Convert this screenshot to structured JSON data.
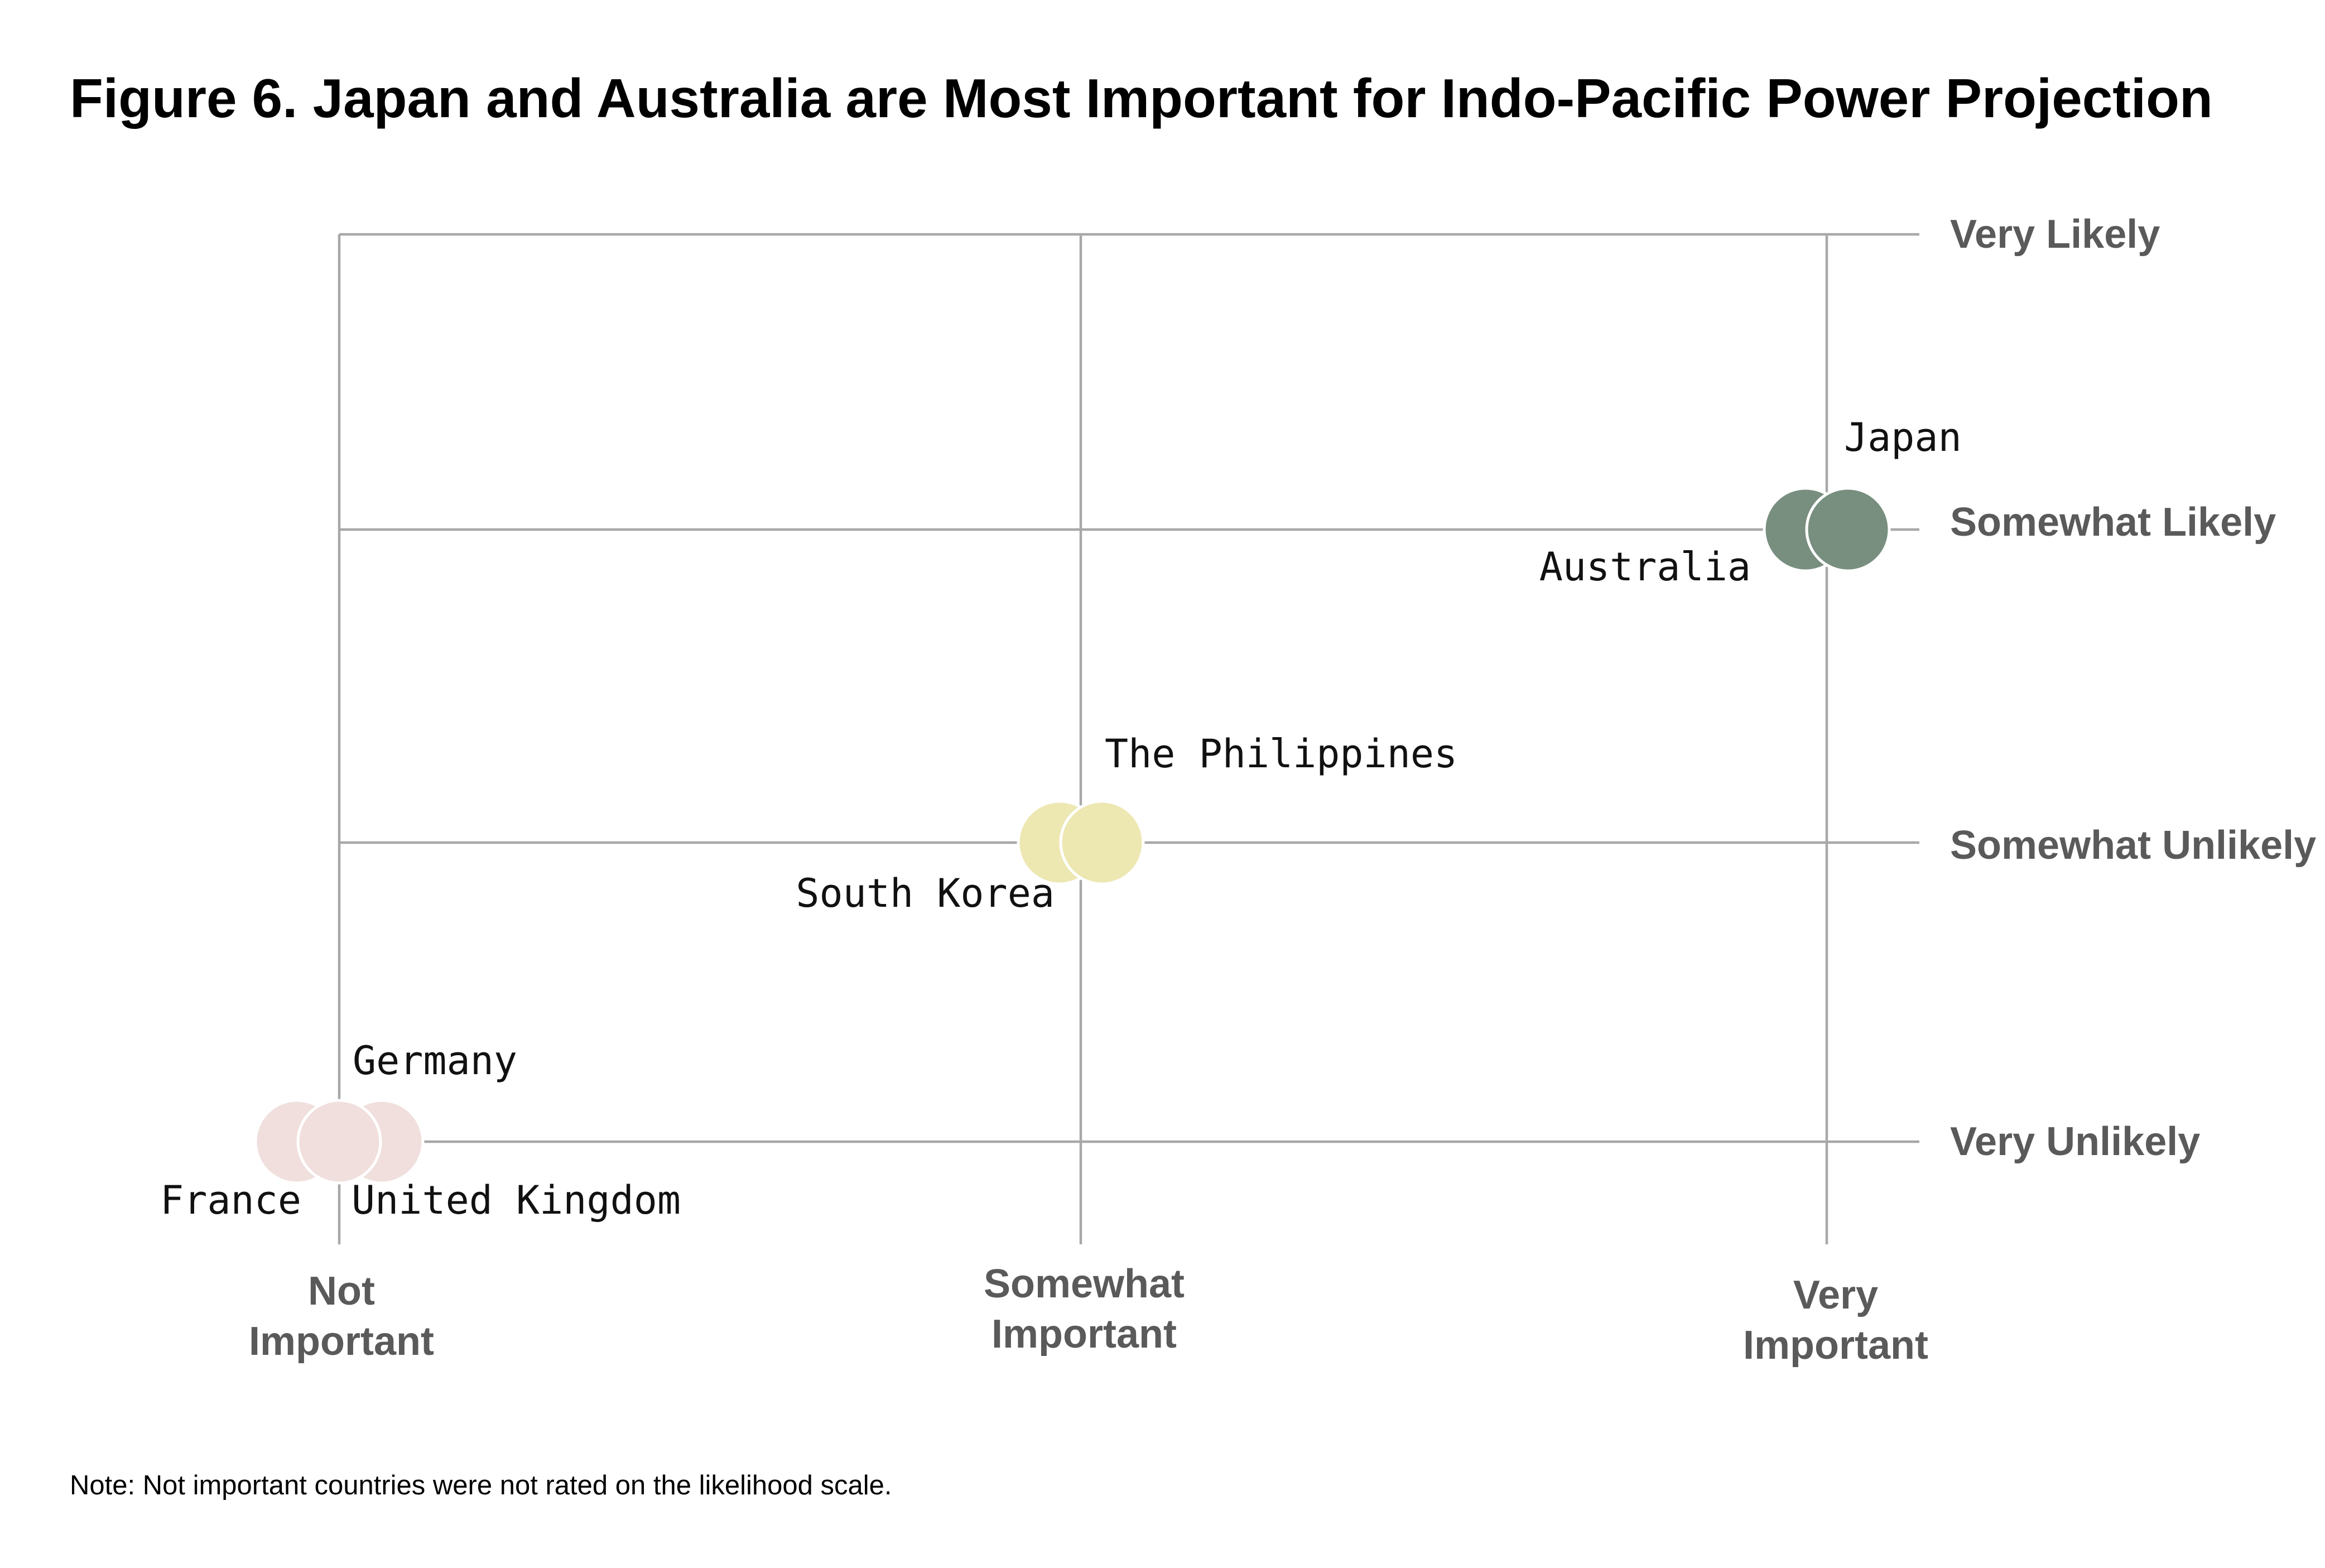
{
  "chart_data": {
    "type": "scatter",
    "title": "Figure 6. Japan and Australia are Most Important for Indo-Pacific Power Projection",
    "note": "Note: Not important countries were not rated on the likelihood scale.",
    "x_axis": {
      "categories": [
        [
          "Not",
          "Important"
        ],
        [
          "Somewhat",
          "Important"
        ],
        [
          "Very",
          "Important"
        ]
      ]
    },
    "y_axis": {
      "categories": [
        "Very Unlikely",
        "Somewhat Unlikely",
        "Somewhat Likely",
        "Very Likely"
      ]
    },
    "colors": {
      "very_important": "#788f80",
      "somewhat_important": "#ede7b2",
      "not_important": "#f0dfdd",
      "grid": "#a8a8a8",
      "axis_label": "#5a5a5a"
    },
    "points": [
      {
        "label": "France",
        "x": 0,
        "y": 0,
        "color": "#f0dfdd"
      },
      {
        "label": "United Kingdom",
        "x": 0,
        "y": 0,
        "color": "#f0dfdd"
      },
      {
        "label": "Germany",
        "x": 0,
        "y": 0,
        "color": "#f0dfdd"
      },
      {
        "label": "South Korea",
        "x": 1,
        "y": 1,
        "color": "#ede7b2"
      },
      {
        "label": "The Philippines",
        "x": 1,
        "y": 1,
        "color": "#ede7b2"
      },
      {
        "label": "Australia",
        "x": 2,
        "y": 2,
        "color": "#788f80"
      },
      {
        "label": "Japan",
        "x": 2,
        "y": 2,
        "color": "#788f80"
      }
    ]
  }
}
